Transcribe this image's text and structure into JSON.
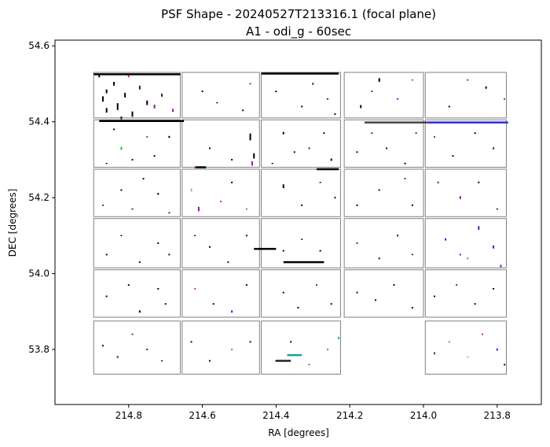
{
  "chart_data": {
    "type": "scatter",
    "title": "PSF Shape - 20240527T213316.1 (focal plane)",
    "subtitle": "A1 - odi_g - 60sec",
    "xlabel": "RA [degrees]",
    "ylabel": "DEC [degrees]",
    "xlim": [
      215.0,
      213.68
    ],
    "ylim": [
      53.655,
      54.615
    ],
    "x_inverted": true,
    "grid": false,
    "legend": "none",
    "xticks": [
      {
        "value": 214.8,
        "label": "214.8"
      },
      {
        "value": 214.6,
        "label": "214.6"
      },
      {
        "value": 214.4,
        "label": "214.4"
      },
      {
        "value": 214.2,
        "label": "214.2"
      },
      {
        "value": 214.0,
        "label": "214.0"
      },
      {
        "value": 213.8,
        "label": "213.8"
      }
    ],
    "yticks": [
      {
        "value": 54.6,
        "label": "54.6"
      },
      {
        "value": 54.4,
        "label": "54.4"
      },
      {
        "value": 54.2,
        "label": "54.2"
      },
      {
        "value": 54.0,
        "label": "54.0"
      },
      {
        "value": 53.8,
        "label": "53.8"
      }
    ],
    "ota_outline_color": "#808080",
    "ota_grid": {
      "columns": [
        [
          214.895,
          214.66
        ],
        [
          214.655,
          214.445
        ],
        [
          214.44,
          214.225
        ],
        [
          214.215,
          214.0
        ],
        [
          213.995,
          213.775
        ]
      ],
      "rows": [
        [
          54.41,
          54.53
        ],
        [
          54.28,
          54.405
        ],
        [
          54.15,
          54.275
        ],
        [
          54.015,
          54.145
        ],
        [
          53.885,
          54.01
        ],
        [
          53.735,
          53.875
        ]
      ],
      "missing": [
        [
          5,
          3
        ]
      ]
    },
    "whisker_colors": [
      "#000000",
      "#222222",
      "#444444",
      "#8b1a9a",
      "#2b2bdd",
      "#e03030",
      "#20a0a0",
      "#2ec02e",
      "#c0a0d0",
      "#3080d0"
    ],
    "whiskers": [
      [
        214.88,
        54.52,
        0,
        0.006
      ],
      [
        214.87,
        54.46,
        0,
        0.014
      ],
      [
        214.86,
        54.43,
        0,
        0.012
      ],
      [
        214.84,
        54.5,
        0,
        0.01
      ],
      [
        214.83,
        54.44,
        0,
        0.018
      ],
      [
        214.81,
        54.47,
        0,
        0.012
      ],
      [
        214.79,
        54.42,
        0,
        0.014
      ],
      [
        214.77,
        54.49,
        1,
        0.01
      ],
      [
        214.75,
        54.45,
        0,
        0.012
      ],
      [
        214.73,
        54.44,
        3,
        0.01
      ],
      [
        214.71,
        54.47,
        1,
        0.008
      ],
      [
        214.68,
        54.43,
        3,
        0.008
      ],
      [
        214.8,
        54.52,
        5,
        0.006
      ],
      [
        214.86,
        54.48,
        0,
        0.01
      ],
      [
        214.82,
        54.41,
        1,
        0.008
      ],
      [
        214.6,
        54.48,
        0,
        0.004
      ],
      [
        214.56,
        54.45,
        0,
        0.003
      ],
      [
        214.49,
        54.43,
        0,
        0.004
      ],
      [
        214.47,
        54.5,
        1,
        0.003
      ],
      [
        214.4,
        54.48,
        0,
        0.004
      ],
      [
        214.33,
        54.44,
        0,
        0.004
      ],
      [
        214.3,
        54.5,
        3,
        0.006
      ],
      [
        214.26,
        54.46,
        0,
        0.003
      ],
      [
        214.24,
        54.42,
        0,
        0.004
      ],
      [
        214.17,
        54.44,
        0,
        0.008
      ],
      [
        214.14,
        54.48,
        0,
        0.003
      ],
      [
        214.12,
        54.51,
        0,
        0.01
      ],
      [
        214.07,
        54.46,
        4,
        0.004
      ],
      [
        214.03,
        54.51,
        3,
        0.003
      ],
      [
        213.93,
        54.44,
        0,
        0.004
      ],
      [
        213.88,
        54.51,
        3,
        0.004
      ],
      [
        213.83,
        54.49,
        0,
        0.006
      ],
      [
        213.78,
        54.46,
        3,
        0.004
      ],
      [
        214.84,
        54.38,
        0,
        0.004
      ],
      [
        214.82,
        54.33,
        7,
        0.008
      ],
      [
        214.79,
        54.3,
        0,
        0.004
      ],
      [
        214.75,
        54.36,
        1,
        0.003
      ],
      [
        214.73,
        54.31,
        0,
        0.004
      ],
      [
        214.69,
        54.36,
        0,
        0.005
      ],
      [
        214.86,
        54.29,
        0,
        0.003
      ],
      [
        214.47,
        54.36,
        0,
        0.018
      ],
      [
        214.46,
        54.31,
        0,
        0.014
      ],
      [
        214.465,
        54.29,
        3,
        0.012
      ],
      [
        214.62,
        54.28,
        5,
        0.004
      ],
      [
        214.58,
        54.33,
        0,
        0.004
      ],
      [
        214.52,
        54.3,
        0,
        0.004
      ],
      [
        214.38,
        54.37,
        0,
        0.006
      ],
      [
        214.35,
        54.32,
        0,
        0.004
      ],
      [
        214.31,
        54.33,
        1,
        0.004
      ],
      [
        214.27,
        54.37,
        0,
        0.004
      ],
      [
        214.25,
        54.3,
        0,
        0.006
      ],
      [
        214.41,
        54.29,
        0,
        0.003
      ],
      [
        214.18,
        54.32,
        0,
        0.004
      ],
      [
        214.14,
        54.37,
        0,
        0.003
      ],
      [
        214.1,
        54.33,
        0,
        0.004
      ],
      [
        214.05,
        54.29,
        0,
        0.004
      ],
      [
        214.02,
        54.37,
        0,
        0.003
      ],
      [
        213.97,
        54.36,
        3,
        0.004
      ],
      [
        213.92,
        54.31,
        0,
        0.004
      ],
      [
        213.86,
        54.37,
        0,
        0.004
      ],
      [
        213.81,
        54.33,
        3,
        0.006
      ],
      [
        214.87,
        54.18,
        0,
        0.003
      ],
      [
        214.82,
        54.22,
        0,
        0.004
      ],
      [
        214.79,
        54.17,
        0,
        0.003
      ],
      [
        214.76,
        54.25,
        0,
        0.004
      ],
      [
        214.72,
        54.21,
        0,
        0.005
      ],
      [
        214.69,
        54.16,
        0,
        0.003
      ],
      [
        214.63,
        54.22,
        8,
        0.008
      ],
      [
        214.61,
        54.17,
        3,
        0.012
      ],
      [
        214.55,
        54.19,
        5,
        0.004
      ],
      [
        214.52,
        54.24,
        0,
        0.004
      ],
      [
        214.48,
        54.17,
        6,
        0.004
      ],
      [
        214.38,
        54.23,
        0,
        0.01
      ],
      [
        214.33,
        54.18,
        0,
        0.004
      ],
      [
        214.28,
        54.24,
        0,
        0.003
      ],
      [
        214.24,
        54.2,
        0,
        0.004
      ],
      [
        214.18,
        54.18,
        0,
        0.004
      ],
      [
        214.12,
        54.22,
        0,
        0.004
      ],
      [
        214.05,
        54.25,
        0,
        0.003
      ],
      [
        214.03,
        54.18,
        0,
        0.004
      ],
      [
        213.96,
        54.24,
        3,
        0.005
      ],
      [
        213.9,
        54.2,
        3,
        0.008
      ],
      [
        213.85,
        54.24,
        0,
        0.004
      ],
      [
        213.8,
        54.17,
        0,
        0.003
      ],
      [
        214.86,
        54.05,
        0,
        0.004
      ],
      [
        214.82,
        54.1,
        0,
        0.003
      ],
      [
        214.77,
        54.03,
        0,
        0.004
      ],
      [
        214.72,
        54.08,
        0,
        0.004
      ],
      [
        214.69,
        54.05,
        0,
        0.004
      ],
      [
        214.62,
        54.1,
        0,
        0.003
      ],
      [
        214.58,
        54.07,
        0,
        0.004
      ],
      [
        214.53,
        54.03,
        0,
        0.004
      ],
      [
        214.48,
        54.1,
        0,
        0.004
      ],
      [
        214.38,
        54.06,
        0,
        0.004
      ],
      [
        214.33,
        54.09,
        0,
        0.003
      ],
      [
        214.28,
        54.06,
        0,
        0.004
      ],
      [
        214.18,
        54.08,
        0,
        0.003
      ],
      [
        214.12,
        54.04,
        0,
        0.004
      ],
      [
        214.07,
        54.1,
        0,
        0.004
      ],
      [
        214.03,
        54.05,
        0,
        0.003
      ],
      [
        213.94,
        54.09,
        4,
        0.006
      ],
      [
        213.9,
        54.05,
        4,
        0.004
      ],
      [
        213.85,
        54.12,
        4,
        0.01
      ],
      [
        213.81,
        54.07,
        4,
        0.008
      ],
      [
        213.79,
        54.02,
        4,
        0.006
      ],
      [
        213.88,
        54.04,
        9,
        0.004
      ],
      [
        214.86,
        53.94,
        0,
        0.004
      ],
      [
        214.8,
        53.97,
        0,
        0.004
      ],
      [
        214.77,
        53.9,
        0,
        0.006
      ],
      [
        214.72,
        53.96,
        0,
        0.004
      ],
      [
        214.7,
        53.92,
        0,
        0.004
      ],
      [
        214.62,
        53.96,
        5,
        0.004
      ],
      [
        214.57,
        53.92,
        0,
        0.004
      ],
      [
        214.52,
        53.9,
        4,
        0.006
      ],
      [
        214.48,
        53.97,
        0,
        0.004
      ],
      [
        214.38,
        53.95,
        0,
        0.004
      ],
      [
        214.34,
        53.91,
        0,
        0.004
      ],
      [
        214.29,
        53.97,
        0,
        0.003
      ],
      [
        214.25,
        53.92,
        0,
        0.004
      ],
      [
        214.18,
        53.95,
        0,
        0.004
      ],
      [
        214.13,
        53.93,
        0,
        0.004
      ],
      [
        214.08,
        53.97,
        0,
        0.004
      ],
      [
        214.03,
        53.91,
        0,
        0.004
      ],
      [
        213.97,
        53.94,
        0,
        0.004
      ],
      [
        213.91,
        53.97,
        0,
        0.003
      ],
      [
        213.86,
        53.92,
        0,
        0.004
      ],
      [
        213.81,
        53.96,
        0,
        0.004
      ],
      [
        214.87,
        53.81,
        0,
        0.004
      ],
      [
        214.83,
        53.78,
        3,
        0.006
      ],
      [
        214.79,
        53.84,
        3,
        0.004
      ],
      [
        214.75,
        53.8,
        1,
        0.004
      ],
      [
        214.71,
        53.77,
        0,
        0.003
      ],
      [
        214.63,
        53.82,
        0,
        0.004
      ],
      [
        214.58,
        53.77,
        0,
        0.004
      ],
      [
        214.52,
        53.8,
        3,
        0.003
      ],
      [
        214.47,
        53.82,
        0,
        0.004
      ],
      [
        214.4,
        53.77,
        0,
        0.003
      ],
      [
        214.36,
        53.82,
        0,
        0.004
      ],
      [
        214.31,
        53.76,
        3,
        0.003
      ],
      [
        214.26,
        53.8,
        6,
        0.004
      ],
      [
        214.23,
        53.83,
        6,
        0.006
      ],
      [
        213.97,
        53.79,
        3,
        0.006
      ],
      [
        213.93,
        53.82,
        7,
        0.004
      ],
      [
        213.88,
        53.78,
        8,
        0.004
      ],
      [
        213.84,
        53.84,
        5,
        0.004
      ],
      [
        213.8,
        53.8,
        4,
        0.006
      ],
      [
        213.78,
        53.76,
        0,
        0.004
      ]
    ],
    "streaks": [
      [
        214.895,
        54.525,
        214.66,
        54.525,
        0
      ],
      [
        214.88,
        54.402,
        214.65,
        54.402,
        0
      ],
      [
        214.44,
        54.527,
        214.23,
        54.527,
        0
      ],
      [
        214.16,
        54.398,
        213.99,
        54.398,
        2
      ],
      [
        213.99,
        54.398,
        213.77,
        54.398,
        4
      ],
      [
        214.38,
        54.03,
        214.27,
        54.03,
        0
      ],
      [
        214.46,
        54.065,
        214.4,
        54.065,
        0
      ],
      [
        214.62,
        54.28,
        214.59,
        54.28,
        0
      ],
      [
        214.29,
        54.275,
        214.23,
        54.275,
        0
      ],
      [
        214.37,
        53.785,
        214.33,
        53.785,
        6
      ],
      [
        214.4,
        53.77,
        214.36,
        53.77,
        1
      ]
    ]
  }
}
